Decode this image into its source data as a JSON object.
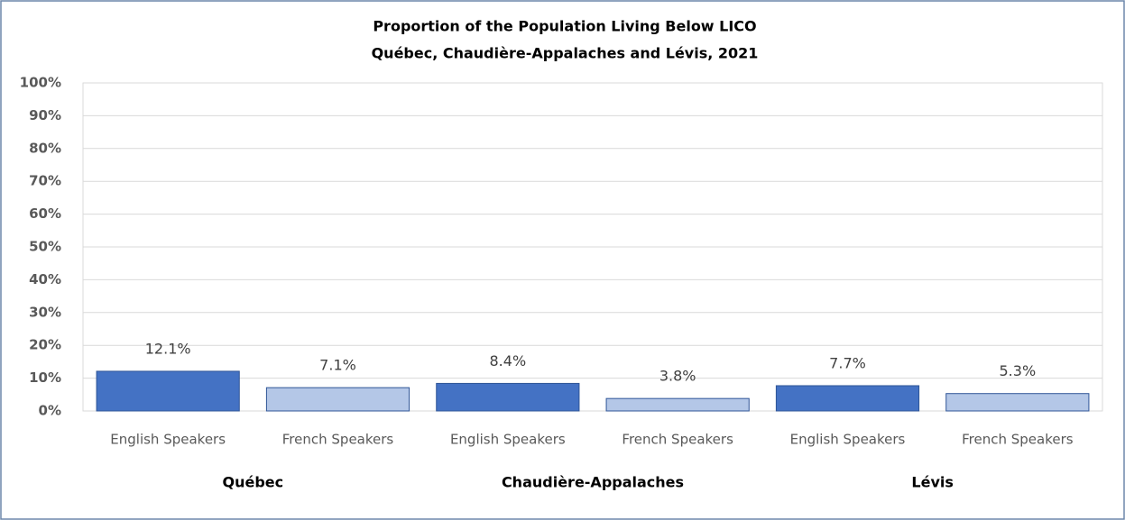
{
  "chart_data": {
    "type": "bar",
    "title": "Proportion of the Population Living Below LICO",
    "subtitle": "Québec, Chaudière-Appalaches and Lévis, 2021",
    "categories": [
      "English Speakers",
      "French Speakers",
      "English Speakers",
      "French Speakers",
      "English Speakers",
      "French Speakers"
    ],
    "groups": [
      "Québec",
      "Chaudière-Appalaches",
      "Lévis"
    ],
    "values": [
      12.1,
      7.1,
      8.4,
      3.8,
      7.7,
      5.3
    ],
    "value_labels": [
      "12.1%",
      "7.1%",
      "8.4%",
      "3.8%",
      "7.7%",
      "5.3%"
    ],
    "colors": [
      "#4472c4",
      "#b4c7e7",
      "#4472c4",
      "#b4c7e7",
      "#4472c4",
      "#b4c7e7"
    ],
    "ylim": [
      0,
      100
    ],
    "yticks": [
      {
        "value": 0,
        "label": "0%"
      },
      {
        "value": 10,
        "label": "10%"
      },
      {
        "value": 20,
        "label": "20%"
      },
      {
        "value": 30,
        "label": "30%"
      },
      {
        "value": 40,
        "label": "40%"
      },
      {
        "value": 50,
        "label": "50%"
      },
      {
        "value": 60,
        "label": "60%"
      },
      {
        "value": 70,
        "label": "70%"
      },
      {
        "value": 80,
        "label": "80%"
      },
      {
        "value": 90,
        "label": "90%"
      },
      {
        "value": 100,
        "label": "100%"
      }
    ],
    "grid": true
  }
}
